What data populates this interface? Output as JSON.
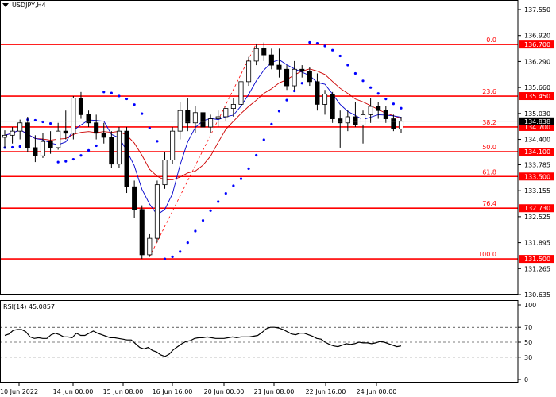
{
  "symbol": "USDJPY,H4",
  "rsi_label": "RSI(14) 45.0857",
  "colors": {
    "fibo": "#ff0000",
    "ma_fast": "#0000cc",
    "ma_slow": "#cc0000",
    "sar": "#0000ff",
    "current_price_bg": "#000000",
    "fibo_label_bg": "#ff0000"
  },
  "chart_data": {
    "type": "candlestick",
    "price_axis_ticks": [
      "137.550",
      "136.920",
      "136.290",
      "135.660",
      "135.030",
      "134.400",
      "133.785",
      "133.155",
      "132.525",
      "131.895",
      "131.265",
      "130.635"
    ],
    "price_range": [
      130.635,
      137.55
    ],
    "time_axis_ticks": [
      "10 Jun 2022",
      "14 Jun 00:00",
      "15 Jun 08:00",
      "16 Jun 16:00",
      "20 Jun 00:00",
      "21 Jun 08:00",
      "22 Jun 16:00",
      "24 Jun 00:00"
    ],
    "fibo_levels": [
      {
        "level": "0.0",
        "price": "136.700",
        "value": 136.7
      },
      {
        "level": "23.6",
        "price": "135.450",
        "value": 135.45
      },
      {
        "level": "38.2",
        "price": "134.700",
        "value": 134.7
      },
      {
        "level": "50.0",
        "price": "134.100",
        "value": 134.1
      },
      {
        "level": "61.8",
        "price": "133.500",
        "value": 133.5
      },
      {
        "level": "76.4",
        "price": "132.730",
        "value": 132.73
      },
      {
        "level": "100.0",
        "price": "131.500",
        "value": 131.5
      }
    ],
    "current_price": "134.838",
    "current_price_value": 134.838,
    "candles": [
      {
        "o": 134.45,
        "h": 134.62,
        "l": 134.2,
        "c": 134.5
      },
      {
        "o": 134.5,
        "h": 134.7,
        "l": 134.3,
        "c": 134.6
      },
      {
        "o": 134.6,
        "h": 134.88,
        "l": 134.4,
        "c": 134.8
      },
      {
        "o": 134.8,
        "h": 134.95,
        "l": 134.1,
        "c": 134.2
      },
      {
        "o": 134.2,
        "h": 134.5,
        "l": 133.85,
        "c": 134.0
      },
      {
        "o": 134.0,
        "h": 134.55,
        "l": 133.95,
        "c": 134.35
      },
      {
        "o": 134.35,
        "h": 134.6,
        "l": 134.05,
        "c": 134.2
      },
      {
        "o": 134.2,
        "h": 134.8,
        "l": 134.15,
        "c": 134.6
      },
      {
        "o": 134.6,
        "h": 135.1,
        "l": 134.4,
        "c": 134.55
      },
      {
        "o": 134.55,
        "h": 135.45,
        "l": 134.4,
        "c": 135.4
      },
      {
        "o": 135.4,
        "h": 135.55,
        "l": 134.9,
        "c": 135.0
      },
      {
        "o": 135.0,
        "h": 135.1,
        "l": 134.7,
        "c": 134.8
      },
      {
        "o": 134.8,
        "h": 135.0,
        "l": 134.4,
        "c": 134.55
      },
      {
        "o": 134.55,
        "h": 134.8,
        "l": 134.3,
        "c": 134.45
      },
      {
        "o": 134.45,
        "h": 134.6,
        "l": 133.7,
        "c": 133.8
      },
      {
        "o": 133.8,
        "h": 134.7,
        "l": 133.7,
        "c": 134.6
      },
      {
        "o": 134.6,
        "h": 134.7,
        "l": 133.1,
        "c": 133.25
      },
      {
        "o": 133.25,
        "h": 133.4,
        "l": 132.5,
        "c": 132.7
      },
      {
        "o": 132.7,
        "h": 132.8,
        "l": 131.5,
        "c": 131.6
      },
      {
        "o": 131.6,
        "h": 132.1,
        "l": 131.55,
        "c": 132.0
      },
      {
        "o": 132.0,
        "h": 133.4,
        "l": 131.9,
        "c": 133.3
      },
      {
        "o": 133.3,
        "h": 134.1,
        "l": 133.2,
        "c": 133.9
      },
      {
        "o": 133.9,
        "h": 134.7,
        "l": 133.8,
        "c": 134.6
      },
      {
        "o": 134.6,
        "h": 135.3,
        "l": 134.4,
        "c": 135.1
      },
      {
        "o": 135.1,
        "h": 135.4,
        "l": 134.6,
        "c": 134.8
      },
      {
        "o": 134.8,
        "h": 135.2,
        "l": 134.55,
        "c": 135.05
      },
      {
        "o": 135.05,
        "h": 135.3,
        "l": 134.6,
        "c": 134.7
      },
      {
        "o": 134.7,
        "h": 135.0,
        "l": 134.55,
        "c": 134.9
      },
      {
        "o": 134.9,
        "h": 135.1,
        "l": 134.7,
        "c": 134.95
      },
      {
        "o": 134.95,
        "h": 135.2,
        "l": 134.85,
        "c": 135.15
      },
      {
        "o": 135.15,
        "h": 135.4,
        "l": 134.95,
        "c": 135.25
      },
      {
        "o": 135.25,
        "h": 135.9,
        "l": 135.1,
        "c": 135.8
      },
      {
        "o": 135.8,
        "h": 136.4,
        "l": 135.7,
        "c": 136.3
      },
      {
        "o": 136.3,
        "h": 136.7,
        "l": 136.2,
        "c": 136.6
      },
      {
        "o": 136.6,
        "h": 136.75,
        "l": 136.3,
        "c": 136.45
      },
      {
        "o": 136.45,
        "h": 136.6,
        "l": 136.1,
        "c": 136.2
      },
      {
        "o": 136.2,
        "h": 136.6,
        "l": 135.9,
        "c": 136.1
      },
      {
        "o": 136.1,
        "h": 136.2,
        "l": 135.6,
        "c": 135.7
      },
      {
        "o": 135.7,
        "h": 136.3,
        "l": 135.6,
        "c": 136.1
      },
      {
        "o": 136.1,
        "h": 136.2,
        "l": 135.9,
        "c": 136.05
      },
      {
        "o": 136.05,
        "h": 136.15,
        "l": 135.7,
        "c": 135.8
      },
      {
        "o": 135.8,
        "h": 136.0,
        "l": 135.1,
        "c": 135.25
      },
      {
        "o": 135.25,
        "h": 135.6,
        "l": 135.0,
        "c": 135.5
      },
      {
        "o": 135.5,
        "h": 135.55,
        "l": 134.8,
        "c": 134.9
      },
      {
        "o": 134.9,
        "h": 135.1,
        "l": 134.2,
        "c": 134.8
      },
      {
        "o": 134.8,
        "h": 135.1,
        "l": 134.6,
        "c": 134.95
      },
      {
        "o": 134.95,
        "h": 135.3,
        "l": 134.7,
        "c": 134.75
      },
      {
        "o": 134.75,
        "h": 135.1,
        "l": 134.3,
        "c": 135.0
      },
      {
        "o": 135.0,
        "h": 135.4,
        "l": 134.8,
        "c": 135.2
      },
      {
        "o": 135.2,
        "h": 135.3,
        "l": 134.9,
        "c": 135.1
      },
      {
        "o": 135.1,
        "h": 135.2,
        "l": 134.8,
        "c": 134.9
      },
      {
        "o": 134.9,
        "h": 135.0,
        "l": 134.6,
        "c": 134.65
      },
      {
        "o": 134.65,
        "h": 134.95,
        "l": 134.55,
        "c": 134.84
      }
    ],
    "rsi": {
      "levels": [
        30,
        50,
        70
      ],
      "axis_ticks": [
        "100",
        "70",
        "50",
        "30",
        "0"
      ],
      "range": [
        0,
        100
      ],
      "values": [
        59,
        61,
        66,
        67,
        67,
        64,
        57,
        55,
        56,
        55,
        55,
        60,
        62,
        60,
        57,
        57,
        56,
        62,
        59,
        59,
        62,
        65,
        62,
        60,
        58,
        56,
        56,
        55,
        54,
        53,
        53,
        48,
        43,
        41,
        43,
        39,
        37,
        33,
        31,
        34,
        40,
        44,
        48,
        51,
        52,
        55,
        56,
        56,
        57,
        56,
        55,
        55,
        55,
        56,
        57,
        56,
        57,
        57,
        57,
        58,
        59,
        63,
        68,
        70,
        70,
        69,
        67,
        64,
        61,
        60,
        62,
        62,
        60,
        58,
        55,
        54,
        50,
        47,
        45,
        44,
        46,
        48,
        47,
        48,
        50,
        49,
        49,
        48,
        49,
        51,
        50,
        48,
        46,
        44,
        45
      ]
    }
  }
}
